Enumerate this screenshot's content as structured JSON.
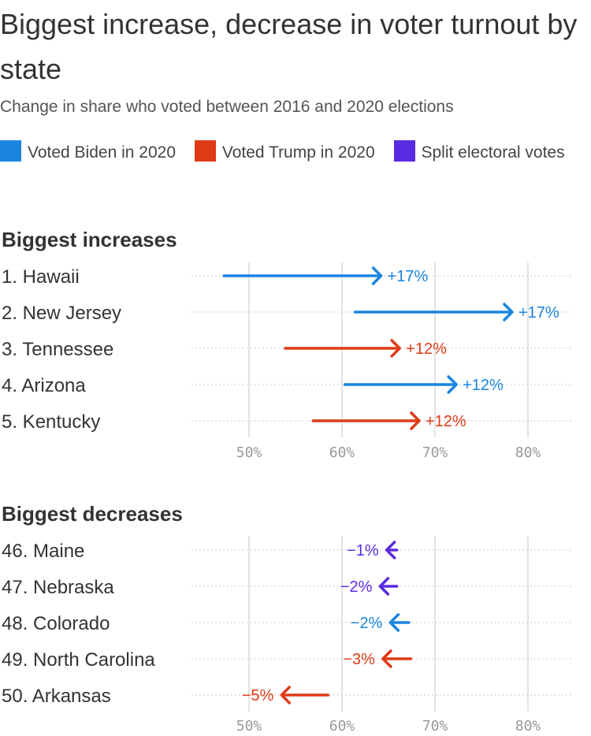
{
  "title": "Biggest increase, decrease in voter turnout by state",
  "subtitle": "Change in share who voted between 2016 and 2020 elections",
  "legend": [
    {
      "key": "biden",
      "label": "Voted Biden in 2020",
      "color": "#1a85e0"
    },
    {
      "key": "trump",
      "label": "Voted Trump in 2020",
      "color": "#de3b17"
    },
    {
      "key": "split",
      "label": "Split electoral votes",
      "color": "#5a2be0"
    }
  ],
  "colors": {
    "biden": "#1a85e0",
    "trump": "#de3b17",
    "split": "#5a2be0"
  },
  "chart_data": [
    {
      "type": "arrow",
      "title": "Biggest increases",
      "xlim": [
        41,
        85
      ],
      "xticks": [
        50,
        60,
        70,
        80
      ],
      "tick_labels": [
        "50%",
        "60%",
        "70%",
        "80%"
      ],
      "grid": true,
      "rows": [
        {
          "label": "1. Hawaii",
          "from": 47.3,
          "to": 64.2,
          "change": "+17%",
          "group": "biden"
        },
        {
          "label": "2. New Jersey",
          "from": 61.4,
          "to": 78.3,
          "change": "+17%",
          "group": "biden"
        },
        {
          "label": "3. Tennessee",
          "from": 53.9,
          "to": 66.2,
          "change": "+12%",
          "group": "trump"
        },
        {
          "label": "4. Arizona",
          "from": 60.3,
          "to": 72.3,
          "change": "+12%",
          "group": "biden"
        },
        {
          "label": "5. Kentucky",
          "from": 56.9,
          "to": 68.3,
          "change": "+12%",
          "group": "trump"
        }
      ]
    },
    {
      "type": "arrow",
      "title": "Biggest decreases",
      "xlim": [
        41,
        85
      ],
      "xticks": [
        50,
        60,
        70,
        80
      ],
      "tick_labels": [
        "50%",
        "60%",
        "70%",
        "80%"
      ],
      "grid": true,
      "rows": [
        {
          "label": "46. Maine",
          "from": 65.9,
          "to": 64.8,
          "change": "−1%",
          "group": "split"
        },
        {
          "label": "47. Nebraska",
          "from": 65.9,
          "to": 64.1,
          "change": "−2%",
          "group": "split"
        },
        {
          "label": "48. Colorado",
          "from": 67.2,
          "to": 65.2,
          "change": "−2%",
          "group": "biden"
        },
        {
          "label": "49. North Carolina",
          "from": 67.4,
          "to": 64.4,
          "change": "−3%",
          "group": "trump"
        },
        {
          "label": "50. Arkansas",
          "from": 58.5,
          "to": 53.5,
          "change": "−5%",
          "group": "trump"
        }
      ]
    }
  ]
}
